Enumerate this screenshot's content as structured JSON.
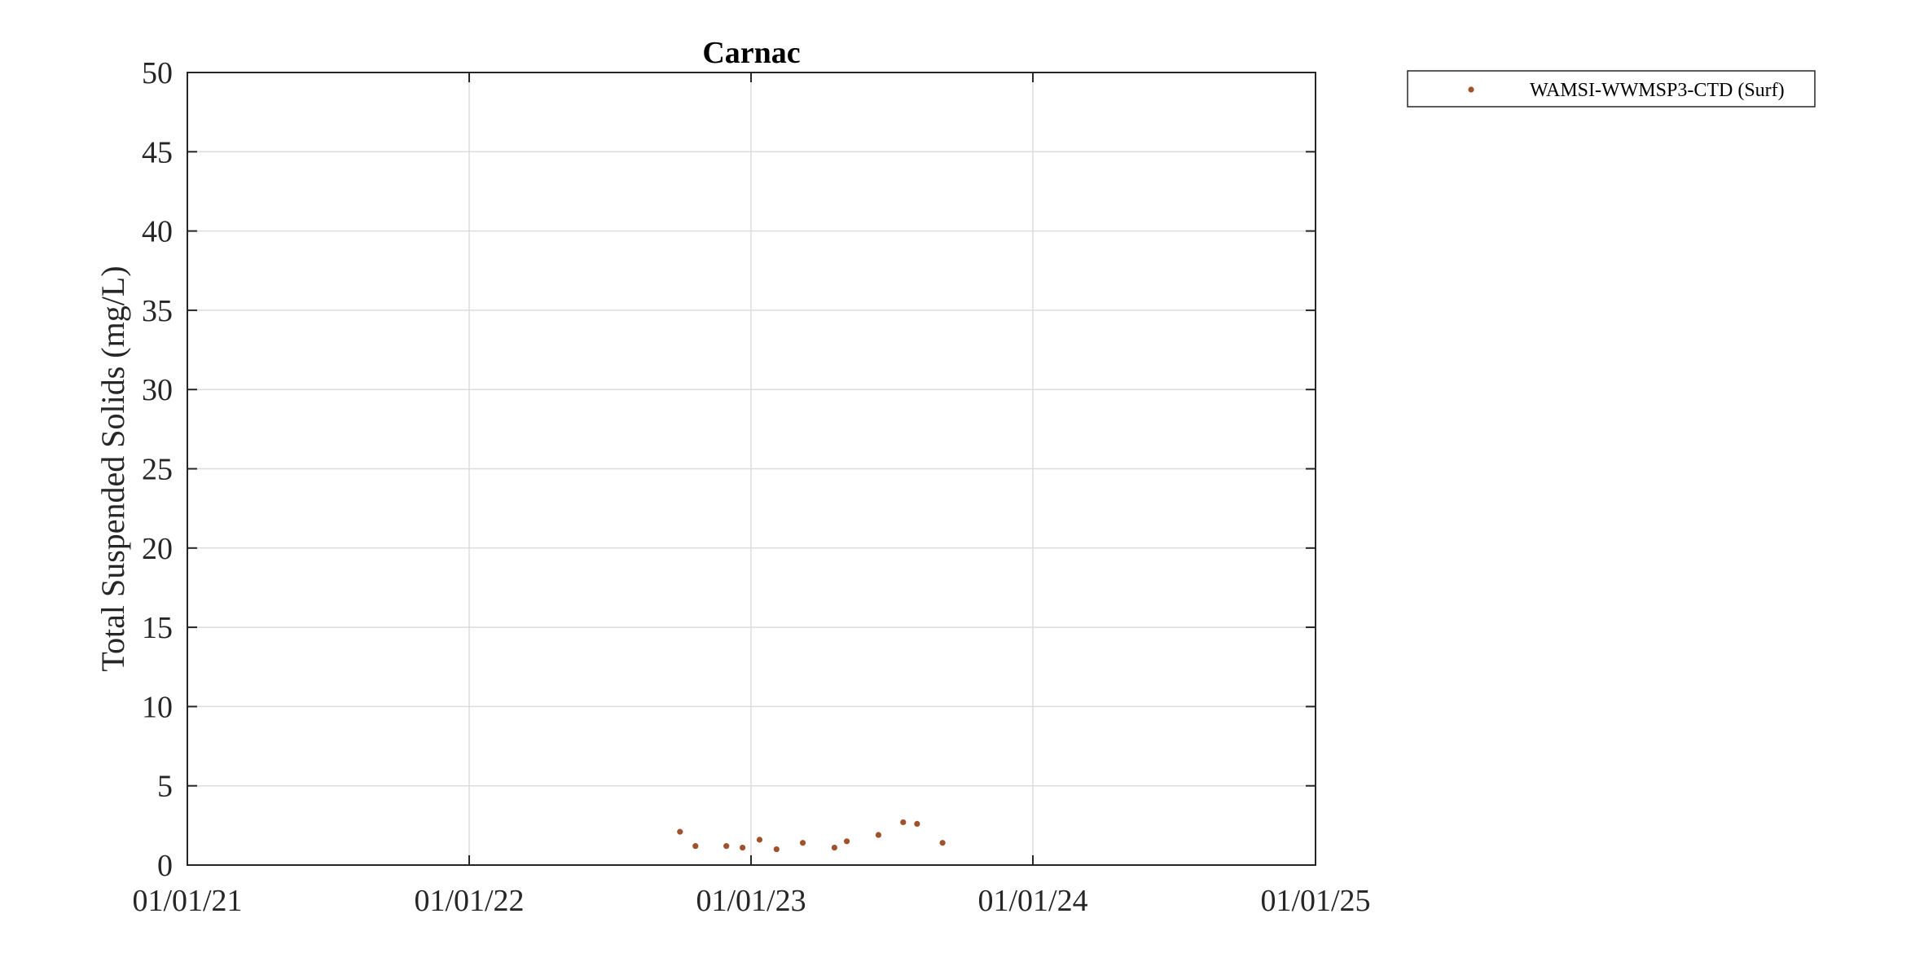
{
  "chart_data": {
    "type": "scatter",
    "title": "Carnac",
    "xlabel": "",
    "ylabel": "Total Suspended Solids (mg/L)",
    "xlim": [
      "2021-01-01",
      "2025-01-01"
    ],
    "ylim": [
      0,
      50
    ],
    "x_ticks": [
      "2021-01-01",
      "2022-01-01",
      "2023-01-01",
      "2024-01-01",
      "2025-01-01"
    ],
    "x_tick_labels": [
      "01/01/21",
      "01/01/22",
      "01/01/23",
      "01/01/24",
      "01/01/25"
    ],
    "y_ticks": [
      0,
      5,
      10,
      15,
      20,
      25,
      30,
      35,
      40,
      45,
      50
    ],
    "y_tick_labels": [
      "0",
      "5",
      "10",
      "15",
      "20",
      "25",
      "30",
      "35",
      "40",
      "45",
      "50"
    ],
    "grid": true,
    "legend_position": "outside-top-right",
    "series": [
      {
        "name": "WAMSI-WWMSP3-CTD (Surf)",
        "color": "#a0522d",
        "marker": "dot",
        "points": [
          {
            "x": "2022-10-01",
            "y": 2.1
          },
          {
            "x": "2022-10-21",
            "y": 1.2
          },
          {
            "x": "2022-11-30",
            "y": 1.2
          },
          {
            "x": "2022-12-21",
            "y": 1.1
          },
          {
            "x": "2023-01-12",
            "y": 1.6
          },
          {
            "x": "2023-02-03",
            "y": 1.0
          },
          {
            "x": "2023-03-09",
            "y": 1.4
          },
          {
            "x": "2023-04-19",
            "y": 1.1
          },
          {
            "x": "2023-05-05",
            "y": 1.5
          },
          {
            "x": "2023-06-15",
            "y": 1.9
          },
          {
            "x": "2023-07-17",
            "y": 2.7
          },
          {
            "x": "2023-08-04",
            "y": 2.6
          },
          {
            "x": "2023-09-06",
            "y": 1.4
          }
        ]
      }
    ]
  }
}
